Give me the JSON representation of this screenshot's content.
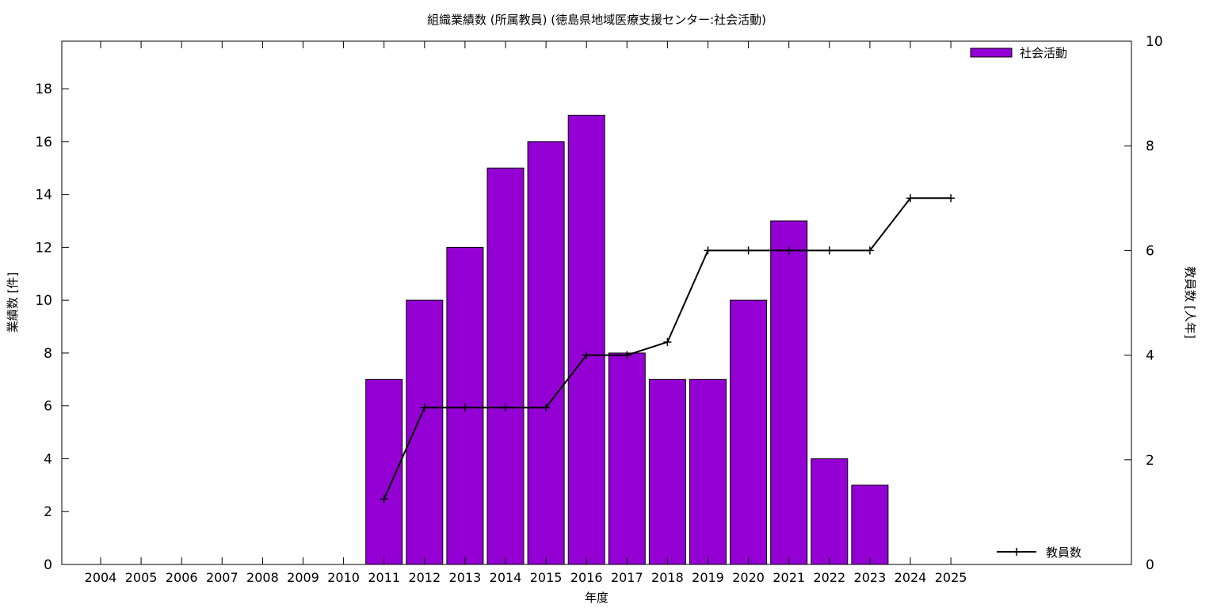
{
  "chart_data": {
    "type": "bar",
    "title": "組織業績数 (所属教員) (徳島県地域医療支援センター:社会活動)",
    "xlabel": "年度",
    "ylabel": "業績数 [件]",
    "y2label": "教員数 [人年]",
    "categories": [
      "2004",
      "2005",
      "2006",
      "2007",
      "2008",
      "2009",
      "2010",
      "2011",
      "2012",
      "2013",
      "2014",
      "2015",
      "2016",
      "2017",
      "2018",
      "2019",
      "2020",
      "2021",
      "2022",
      "2023",
      "2024",
      "2025"
    ],
    "ylim": [
      0,
      19.8
    ],
    "y_ticks": [
      0,
      2,
      4,
      6,
      8,
      10,
      12,
      14,
      16,
      18
    ],
    "y2lim": [
      0,
      10
    ],
    "y2_ticks": [
      0,
      2,
      4,
      6,
      8,
      10
    ],
    "legend_placement": "top-right (bars), bottom-right (line)",
    "grid": false,
    "series": [
      {
        "name": "社会活動",
        "type": "bar",
        "axis": "left",
        "color": "#9400d3",
        "values": [
          0,
          0,
          0,
          0,
          0,
          0,
          0,
          7,
          10,
          12,
          15,
          16,
          17,
          8,
          7,
          7,
          10,
          13,
          4,
          3,
          0,
          0
        ]
      },
      {
        "name": "教員数",
        "type": "line",
        "axis": "right",
        "color": "#000000",
        "values": [
          null,
          null,
          null,
          null,
          null,
          null,
          null,
          1.25,
          3,
          3,
          3,
          3,
          4,
          4,
          4.25,
          6,
          6,
          6,
          6,
          6,
          7,
          7
        ]
      }
    ]
  }
}
